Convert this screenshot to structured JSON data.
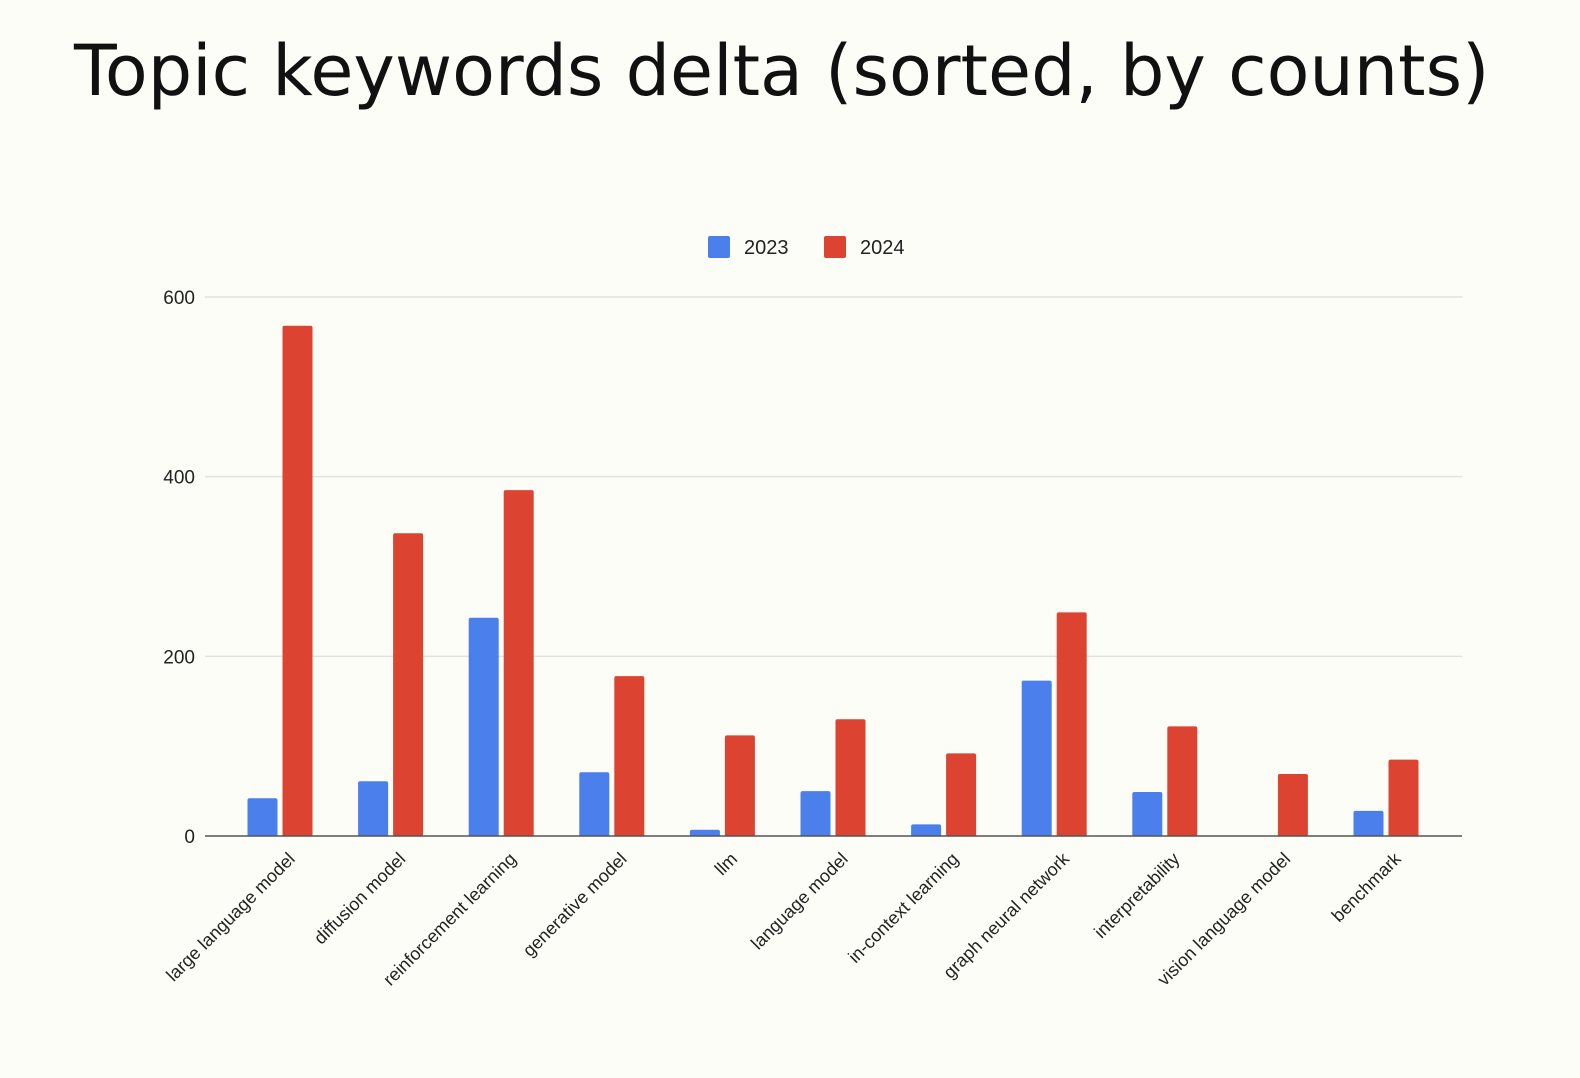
{
  "slide": {
    "title": "Topic keywords delta (sorted, by counts)"
  },
  "chart_data": {
    "type": "bar",
    "title": "Topic keywords delta (sorted, by counts)",
    "xlabel": "",
    "ylabel": "",
    "ylim": [
      0,
      600
    ],
    "yticks": [
      0,
      200,
      400,
      600
    ],
    "grid": true,
    "legend_position": "top-center",
    "categories": [
      "large language model",
      "diffusion model",
      "reinforcement learning",
      "generative model",
      "llm",
      "language model",
      "in-context learning",
      "graph neural network",
      "interpretability",
      "vision language model",
      "benchmark"
    ],
    "series": [
      {
        "name": "2023",
        "color": "#4a7fec",
        "values": [
          42,
          61,
          243,
          71,
          7,
          50,
          13,
          173,
          49,
          0,
          28
        ]
      },
      {
        "name": "2024",
        "color": "#dc4331",
        "values": [
          568,
          337,
          385,
          178,
          112,
          130,
          92,
          249,
          122,
          69,
          85
        ]
      }
    ]
  }
}
